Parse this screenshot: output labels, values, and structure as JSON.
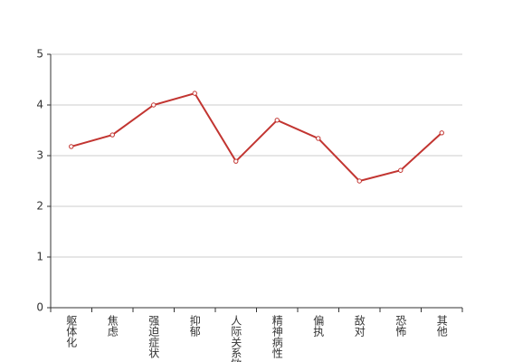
{
  "chart_data": {
    "type": "line",
    "categories": [
      "躯体化",
      "焦虑",
      "强迫症状",
      "抑郁",
      "人际关系敏感",
      "精神病性",
      "偏执",
      "敌对",
      "恐怖",
      "其他"
    ],
    "series": [
      {
        "color": "#c23531",
        "values": [
          3.18,
          3.41,
          4.0,
          4.23,
          2.89,
          3.7,
          3.34,
          2.5,
          2.71,
          3.45
        ]
      }
    ],
    "ylim": [
      0,
      5
    ],
    "yticks": [
      0,
      1,
      2,
      3,
      4,
      5
    ],
    "grid": true
  }
}
